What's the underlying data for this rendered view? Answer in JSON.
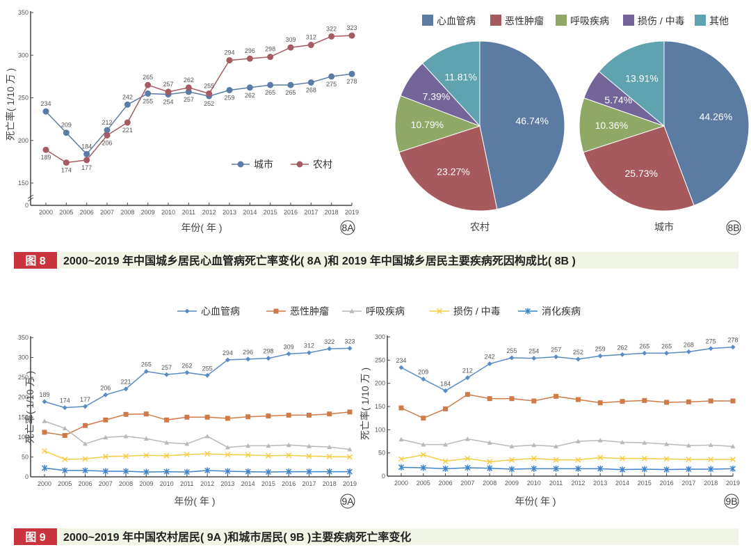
{
  "chart_data": [
    {
      "id": "8A",
      "type": "line",
      "badge": "8A",
      "xlabel": "年份( 年 )",
      "ylabel": "死亡率( 1/10 万 )",
      "categories": [
        "2000",
        "2005",
        "2006",
        "2007",
        "2008",
        "2009",
        "2010",
        "2011",
        "2012",
        "2013",
        "2014",
        "2015",
        "2016",
        "2017",
        "2018",
        "2019"
      ],
      "yticks": [
        0,
        150,
        200,
        250,
        300,
        350
      ],
      "axis_break": true,
      "ylim": [
        150,
        350
      ],
      "legend": "inside-lower-right",
      "data_labels": true,
      "series": [
        {
          "name": "城市",
          "color": "#5a7ba6",
          "marker": "circle",
          "values": [
            234,
            209,
            184,
            212,
            242,
            255,
            254,
            257,
            252,
            259,
            262,
            265,
            265,
            268,
            275,
            278
          ]
        },
        {
          "name": "农村",
          "color": "#a65a62",
          "marker": "circle",
          "values": [
            189,
            174,
            177,
            206,
            221,
            265,
            257,
            262,
            255,
            294,
            296,
            298,
            309,
            312,
            322,
            323
          ]
        }
      ]
    },
    {
      "id": "8B",
      "type": "pie",
      "badge": "8B",
      "legend": "top",
      "categories": [
        "心血管病",
        "恶性肿瘤",
        "呼吸疾病",
        "损伤 / 中毒",
        "其他"
      ],
      "colors": [
        "#5b7ba3",
        "#a65a5e",
        "#8fa866",
        "#73649a",
        "#5fa2b0"
      ],
      "pies": [
        {
          "name": "农村",
          "values": [
            46.74,
            23.27,
            10.79,
            7.39,
            11.81
          ],
          "labels": [
            "46.74%",
            "23.27%",
            "10.79%",
            "7.39%",
            "11.81%"
          ]
        },
        {
          "name": "城市",
          "values": [
            44.26,
            25.73,
            10.36,
            5.74,
            13.91
          ],
          "labels": [
            "44.26%",
            "25.73%",
            "10.36%",
            "5.74%",
            "13.91%"
          ]
        }
      ]
    },
    {
      "id": "9A",
      "type": "line",
      "badge": "9A",
      "xlabel": "年份( 年 )",
      "ylabel": "死亡率( 1/10 万 )",
      "ylim": [
        0,
        350
      ],
      "yticks": [
        0,
        50,
        100,
        150,
        200,
        250,
        300,
        350
      ],
      "categories": [
        "2000",
        "2005",
        "2006",
        "2007",
        "2008",
        "2009",
        "2010",
        "2011",
        "2012",
        "2013",
        "2014",
        "2015",
        "2016",
        "2017",
        "2018",
        "2019"
      ],
      "series": [
        {
          "name": "心血管病",
          "color": "#5b8bc4",
          "marker": "diamond",
          "labeled": true,
          "values": [
            189,
            174,
            177,
            206,
            221,
            265,
            257,
            262,
            255,
            294,
            296,
            298,
            309,
            312,
            322,
            323
          ]
        },
        {
          "name": "恶性肿瘤",
          "color": "#d07a48",
          "marker": "square",
          "values": [
            112,
            104,
            129,
            143,
            157,
            158,
            143,
            150,
            150,
            147,
            151,
            153,
            155,
            155,
            158,
            163
          ]
        },
        {
          "name": "呼吸疾病",
          "color": "#b9b9b9",
          "marker": "triangle",
          "values": [
            140,
            122,
            83,
            99,
            102,
            96,
            86,
            83,
            102,
            74,
            78,
            78,
            80,
            77,
            75,
            69
          ]
        },
        {
          "name": "损伤 / 中毒",
          "color": "#f5cd45",
          "marker": "x",
          "values": [
            65,
            44,
            45,
            51,
            52,
            54,
            53,
            56,
            58,
            56,
            55,
            53,
            54,
            52,
            51,
            50
          ]
        },
        {
          "name": "消化疾病",
          "color": "#3f83c9",
          "marker": "asterisk",
          "values": [
            22,
            16,
            16,
            14,
            14,
            12,
            13,
            12,
            16,
            14,
            13,
            12,
            13,
            13,
            13,
            13
          ]
        }
      ]
    },
    {
      "id": "9B",
      "type": "line",
      "badge": "9B",
      "xlabel": "年份( 年 )",
      "ylabel": "死亡率( 1/10 万 )",
      "ylim": [
        0,
        300
      ],
      "yticks": [
        0,
        50,
        100,
        150,
        200,
        250,
        300
      ],
      "categories": [
        "2000",
        "2005",
        "2006",
        "2007",
        "2008",
        "2009",
        "2010",
        "2011",
        "2012",
        "2013",
        "2014",
        "2015",
        "2016",
        "2017",
        "2018",
        "2019"
      ],
      "series": [
        {
          "name": "心血管病",
          "color": "#5b8bc4",
          "marker": "diamond",
          "labeled": true,
          "values": [
            234,
            209,
            184,
            212,
            242,
            255,
            254,
            257,
            252,
            259,
            262,
            265,
            265,
            268,
            275,
            278
          ]
        },
        {
          "name": "恶性肿瘤",
          "color": "#d07a48",
          "marker": "square",
          "values": [
            147,
            125,
            145,
            176,
            167,
            167,
            162,
            172,
            165,
            158,
            161,
            163,
            159,
            160,
            162,
            162
          ]
        },
        {
          "name": "呼吸疾病",
          "color": "#b9b9b9",
          "marker": "triangle",
          "values": [
            79,
            68,
            68,
            80,
            72,
            64,
            67,
            64,
            75,
            77,
            73,
            72,
            69,
            66,
            67,
            64
          ]
        },
        {
          "name": "损伤 / 中毒",
          "color": "#f5cd45",
          "marker": "x",
          "values": [
            37,
            46,
            32,
            38,
            31,
            35,
            38,
            35,
            35,
            40,
            38,
            38,
            37,
            36,
            36,
            36
          ]
        },
        {
          "name": "消化疾病",
          "color": "#3f83c9",
          "marker": "asterisk",
          "values": [
            19,
            18,
            16,
            18,
            17,
            15,
            16,
            16,
            16,
            16,
            14,
            15,
            14,
            15,
            15,
            16
          ]
        }
      ]
    }
  ],
  "legend9": [
    "心血管病",
    "恶性肿瘤",
    "呼吸疾病",
    "损伤 / 中毒",
    "消化疾病"
  ],
  "captions": {
    "fig8": {
      "num": "图 8",
      "text": "2000~2019 年中国城乡居民心血管病死亡率变化( 8A )和 2019 年中国城乡居民主要疾病死因构成比( 8B )"
    },
    "fig9": {
      "num": "图 9",
      "text": "2000~2019 年中国农村居民( 9A )和城市居民( 9B )主要疾病死亡率变化"
    }
  },
  "colors": {
    "caption_red": "#c8333c",
    "caption_bg": "#f1f5e6"
  }
}
